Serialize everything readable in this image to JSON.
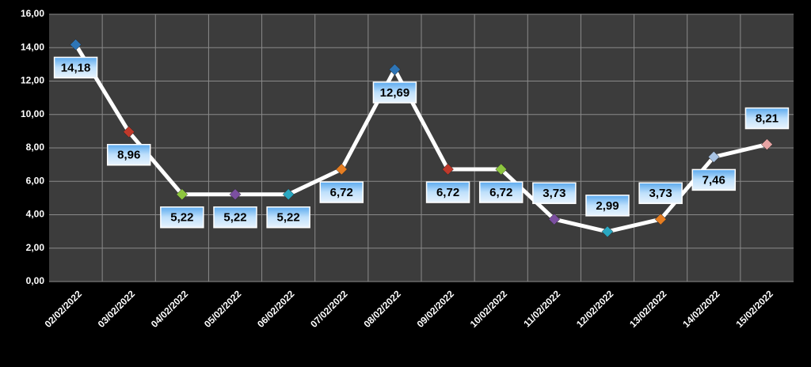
{
  "chart_data": {
    "type": "line",
    "categories": [
      "02/02/2022",
      "03/02/2022",
      "04/02/2022",
      "05/02/2022",
      "06/02/2022",
      "07/02/2022",
      "08/02/2022",
      "09/02/2022",
      "10/02/2022",
      "11/02/2022",
      "12/02/2022",
      "13/02/2022",
      "14/02/2022",
      "15/02/2022"
    ],
    "values": [
      14.18,
      8.96,
      5.22,
      5.22,
      5.22,
      6.72,
      12.69,
      6.72,
      6.72,
      3.73,
      2.99,
      3.73,
      7.46,
      8.21
    ],
    "value_labels": [
      "14,18",
      "8,96",
      "5,22",
      "5,22",
      "5,22",
      "6,72",
      "12,69",
      "6,72",
      "6,72",
      "3,73",
      "2,99",
      "3,73",
      "7,46",
      "8,21"
    ],
    "color": "#ffffff",
    "marker_colors": [
      "#2e75b6",
      "#c0392b",
      "#8dc63f",
      "#7b4fa0",
      "#2aa7c0",
      "#e67e22",
      "#2e75b6",
      "#c0392b",
      "#8dc63f",
      "#7b4fa0",
      "#2aa7c0",
      "#e67e22",
      "#a9c4e4",
      "#e6a3a3"
    ],
    "ylim": [
      0,
      16
    ],
    "yticks": [
      {
        "value": 0,
        "label": "0,00"
      },
      {
        "value": 2,
        "label": "2,00"
      },
      {
        "value": 4,
        "label": "4,00"
      },
      {
        "value": 6,
        "label": "6,00"
      },
      {
        "value": 8,
        "label": "8,00"
      },
      {
        "value": 10,
        "label": "10,00"
      },
      {
        "value": 12,
        "label": "12,00"
      },
      {
        "value": 14,
        "label": "14,00"
      },
      {
        "value": 16,
        "label": "16,00"
      }
    ],
    "grid": true
  }
}
